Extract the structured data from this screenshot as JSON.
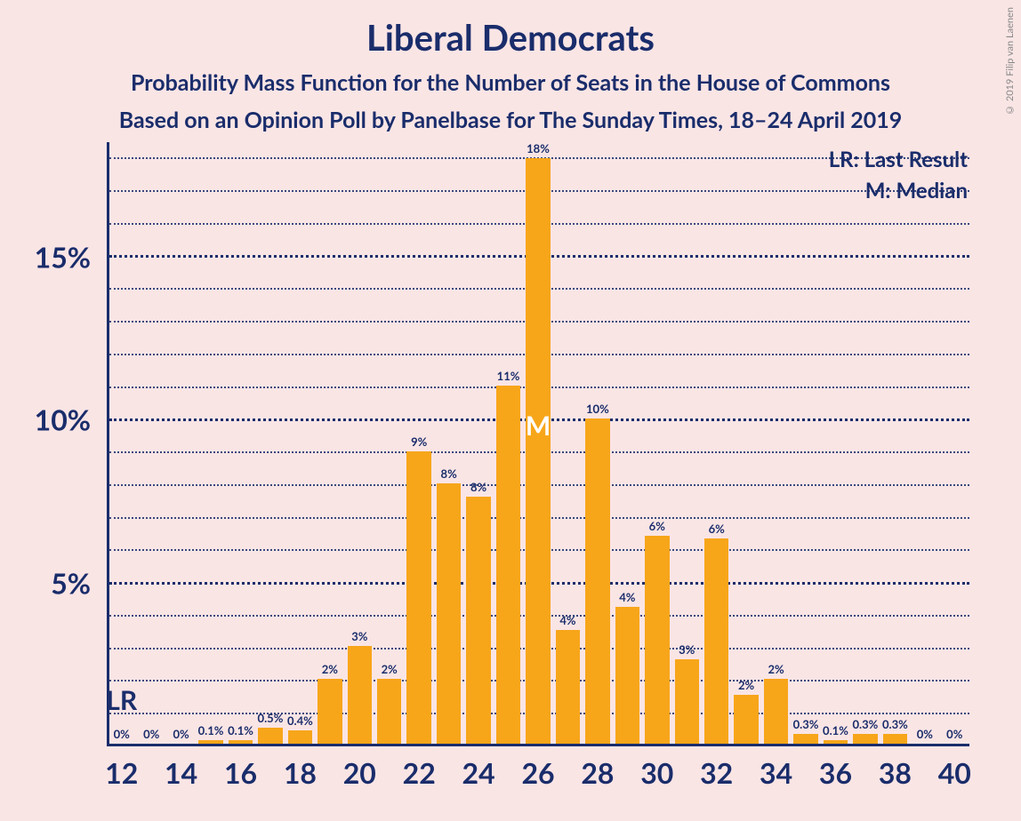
{
  "title": "Liberal Democrats",
  "subtitle1": "Probability Mass Function for the Number of Seats in the House of Commons",
  "subtitle2": "Based on an Opinion Poll by Panelbase for The Sunday Times, 18–24 April 2019",
  "legend": {
    "lr": "LR: Last Result",
    "m": "M: Median"
  },
  "copyright": "© 2019 Filip van Laenen",
  "chart": {
    "type": "bar",
    "bar_color": "#f7a61a",
    "text_color": "#1a2d6b",
    "background_color": "#fae5e5",
    "x_range": [
      11.5,
      40.5
    ],
    "y_range": [
      0,
      18.5
    ],
    "y_ticks_major": [
      5,
      10,
      15
    ],
    "y_ticks_minor": [
      1,
      2,
      3,
      4,
      6,
      7,
      8,
      9,
      11,
      12,
      13,
      14,
      16,
      17,
      18
    ],
    "x_tick_labels": [
      12,
      14,
      16,
      18,
      20,
      22,
      24,
      26,
      28,
      30,
      32,
      34,
      36,
      38,
      40
    ],
    "bar_width_ratio": 0.82,
    "lr_x": 12,
    "median_x": 26,
    "bars": [
      {
        "x": 12,
        "y": 0,
        "label": "0%"
      },
      {
        "x": 13,
        "y": 0,
        "label": "0%"
      },
      {
        "x": 14,
        "y": 0,
        "label": "0%"
      },
      {
        "x": 15,
        "y": 0.1,
        "label": "0.1%"
      },
      {
        "x": 16,
        "y": 0.1,
        "label": "0.1%"
      },
      {
        "x": 17,
        "y": 0.5,
        "label": "0.5%"
      },
      {
        "x": 18,
        "y": 0.4,
        "label": "0.4%"
      },
      {
        "x": 19,
        "y": 2,
        "label": "2%"
      },
      {
        "x": 20,
        "y": 3,
        "label": "3%"
      },
      {
        "x": 21,
        "y": 2,
        "label": "2%"
      },
      {
        "x": 22,
        "y": 9,
        "label": "9%"
      },
      {
        "x": 23,
        "y": 8,
        "label": "8%"
      },
      {
        "x": 24,
        "y": 7.6,
        "label": "8%"
      },
      {
        "x": 25,
        "y": 11,
        "label": "11%"
      },
      {
        "x": 26,
        "y": 18,
        "label": "18%"
      },
      {
        "x": 27,
        "y": 3.5,
        "label": "4%"
      },
      {
        "x": 28,
        "y": 10,
        "label": "10%"
      },
      {
        "x": 29,
        "y": 4.2,
        "label": "4%"
      },
      {
        "x": 30,
        "y": 6.4,
        "label": "6%"
      },
      {
        "x": 31,
        "y": 2.6,
        "label": "3%"
      },
      {
        "x": 32,
        "y": 6.3,
        "label": "6%"
      },
      {
        "x": 33,
        "y": 1.5,
        "label": "2%"
      },
      {
        "x": 34,
        "y": 2,
        "label": "2%"
      },
      {
        "x": 35,
        "y": 0.3,
        "label": "0.3%"
      },
      {
        "x": 36,
        "y": 0.1,
        "label": "0.1%"
      },
      {
        "x": 37,
        "y": 0.3,
        "label": "0.3%"
      },
      {
        "x": 38,
        "y": 0.3,
        "label": "0.3%"
      },
      {
        "x": 39,
        "y": 0,
        "label": "0%"
      },
      {
        "x": 40,
        "y": 0,
        "label": "0%"
      }
    ]
  }
}
